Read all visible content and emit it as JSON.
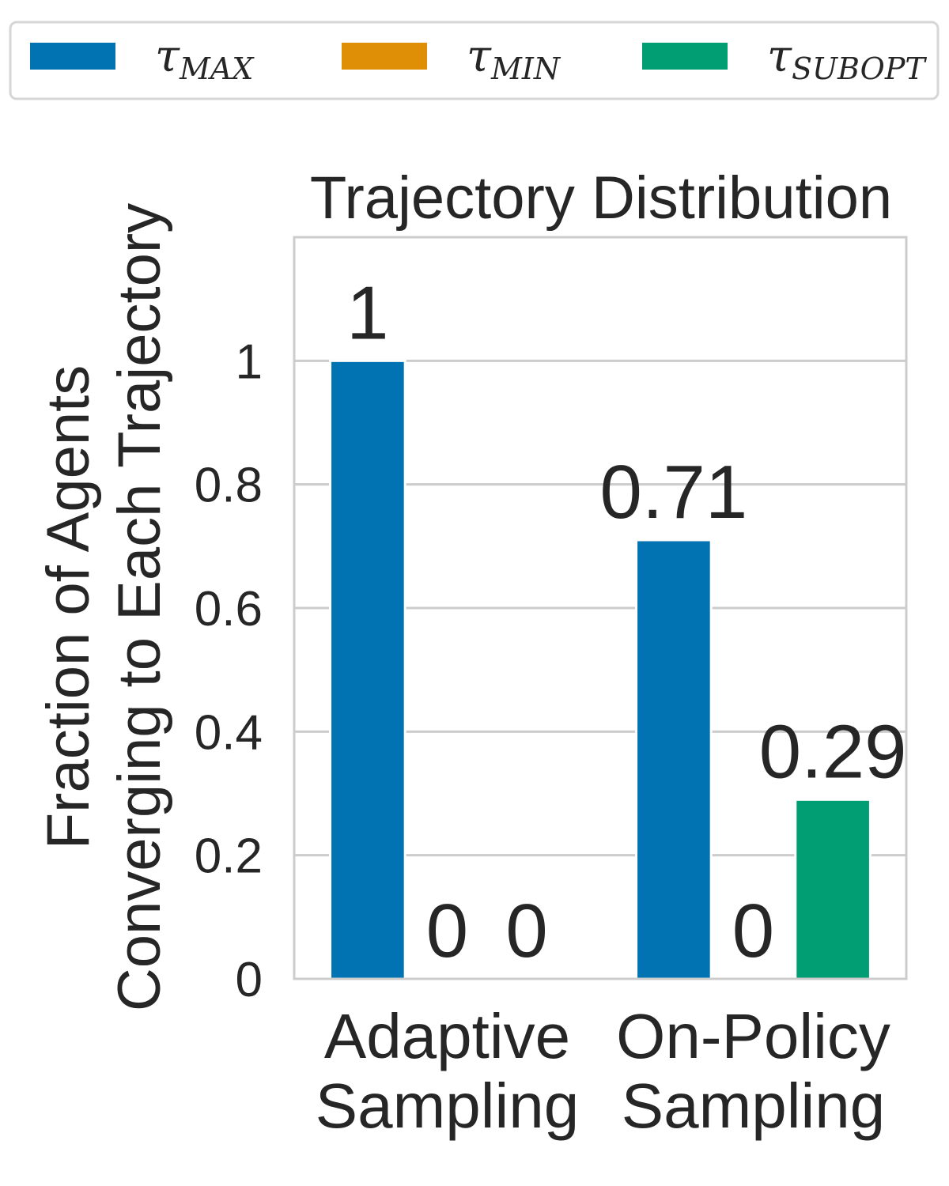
{
  "chart_data": {
    "type": "bar",
    "title": "Trajectory Distribution",
    "ylabel_lines": [
      "Fraction of Agents",
      "Converging to Each Trajectory"
    ],
    "xlabel": "",
    "categories": [
      {
        "lines": [
          "Adaptive",
          "Sampling"
        ]
      },
      {
        "lines": [
          "On-Policy",
          "Sampling"
        ]
      }
    ],
    "ylim": [
      0,
      1.2
    ],
    "yticks": [
      {
        "value": 0,
        "label": "0"
      },
      {
        "value": 0.2,
        "label": "0.2"
      },
      {
        "value": 0.4,
        "label": "0.4"
      },
      {
        "value": 0.6,
        "label": "0.6"
      },
      {
        "value": 0.8,
        "label": "0.8"
      },
      {
        "value": 1,
        "label": "1"
      }
    ],
    "grid": true,
    "legend_position": "top",
    "series": [
      {
        "name_main": "τ",
        "name_sub": "MAX",
        "color": "#0173b2",
        "values": [
          1,
          0.71
        ],
        "labels": [
          "1",
          "0.71"
        ]
      },
      {
        "name_main": "τ",
        "name_sub": "MIN",
        "color": "#de8f05",
        "values": [
          0,
          0
        ],
        "labels": [
          "0",
          "0"
        ]
      },
      {
        "name_main": "τ",
        "name_sub": "SUBOPT",
        "color": "#029e73",
        "values": [
          0,
          0.29
        ],
        "labels": [
          "0",
          "0.29"
        ]
      }
    ]
  }
}
